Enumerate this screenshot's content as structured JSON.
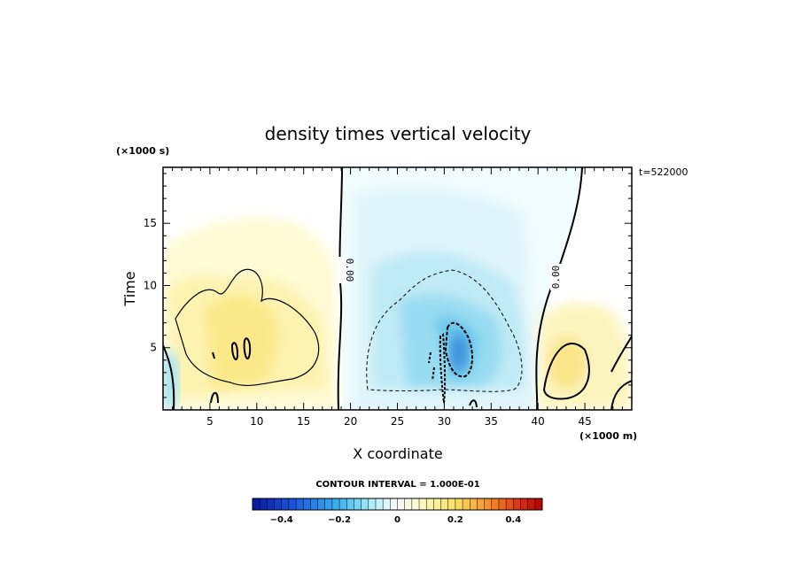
{
  "chart_data": {
    "type": "heatmap",
    "title": "density times vertical velocity",
    "xlabel": "X coordinate",
    "ylabel": "Time",
    "x_units": "(×1000 m)",
    "y_units": "(×1000 s)",
    "annotation": "t=522000",
    "xlim": [
      0,
      50
    ],
    "ylim": [
      0,
      19.5
    ],
    "x_ticks": [
      5,
      10,
      15,
      20,
      25,
      30,
      35,
      40,
      45
    ],
    "y_ticks": [
      5,
      10,
      15
    ],
    "contour_interval_label": "CONTOUR INTERVAL = 1.000E-01",
    "zero_contour_label": "0.00",
    "zero_contours_x": [
      19,
      40
    ],
    "colorbar": {
      "range": [
        -0.5,
        0.5
      ],
      "ticks": [
        -0.4,
        -0.2,
        0,
        0.2,
        0.4
      ],
      "tick_labels": [
        "−0.4",
        "−0.2",
        "0",
        "0.2",
        "0.4"
      ],
      "low_color": "#0a1fa0",
      "mid_color": "#ffffff",
      "high_color": "#b00000"
    },
    "features": [
      {
        "kind": "positive",
        "x_center": 9,
        "y_center": 5,
        "peak": 0.15
      },
      {
        "kind": "negative",
        "x_center": 31,
        "y_center": 4.5,
        "peak": -0.3
      },
      {
        "kind": "positive",
        "x_center": 43,
        "y_center": 3.5,
        "peak": 0.12
      },
      {
        "kind": "negative",
        "x_center": 1,
        "y_center": 2.5,
        "peak": -0.1
      }
    ]
  }
}
